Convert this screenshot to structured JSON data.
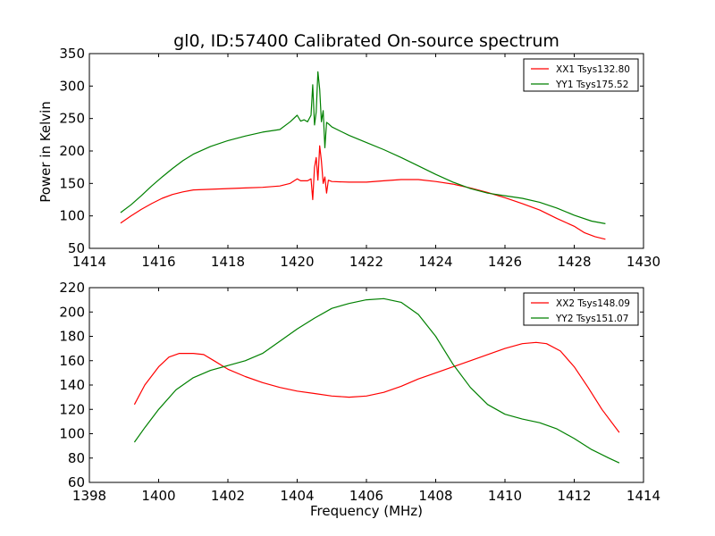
{
  "figure_title": "gl0, ID:57400 Calibrated On-source spectrum",
  "colors": {
    "xx": "#ff0000",
    "yy": "#008000",
    "axes": "#000000",
    "background": "#ffffff"
  },
  "chart_data": [
    {
      "type": "line",
      "title": "gl0, ID:57400 Calibrated On-source spectrum",
      "xlabel": "",
      "ylabel": "Power in Kelvin",
      "xlim": [
        1414,
        1430
      ],
      "ylim": [
        50,
        350
      ],
      "xticks": [
        1414,
        1416,
        1418,
        1420,
        1422,
        1424,
        1426,
        1428,
        1430
      ],
      "yticks": [
        50,
        100,
        150,
        200,
        250,
        300,
        350
      ],
      "legend_position": "top-right",
      "grid": false,
      "series": [
        {
          "name": "XX1 Tsys132.80",
          "color": "#ff0000",
          "x": [
            1414.9,
            1415.2,
            1415.5,
            1415.8,
            1416.1,
            1416.4,
            1416.7,
            1417.0,
            1417.5,
            1418.0,
            1418.5,
            1419.0,
            1419.5,
            1419.8,
            1420.0,
            1420.1,
            1420.3,
            1420.4,
            1420.45,
            1420.5,
            1420.55,
            1420.6,
            1420.65,
            1420.7,
            1420.75,
            1420.8,
            1420.85,
            1420.9,
            1421.0,
            1421.5,
            1422.0,
            1422.5,
            1423.0,
            1423.5,
            1424.0,
            1424.5,
            1425.0,
            1425.5,
            1426.0,
            1426.5,
            1427.0,
            1427.5,
            1428.0,
            1428.3,
            1428.6,
            1428.9
          ],
          "y": [
            89,
            100,
            110,
            119,
            127,
            133,
            137,
            140,
            141,
            142,
            143,
            144,
            146,
            150,
            157,
            154,
            154,
            157,
            125,
            175,
            190,
            155,
            208,
            185,
            150,
            160,
            135,
            155,
            153,
            152,
            152,
            154,
            156,
            156,
            153,
            149,
            143,
            136,
            128,
            119,
            109,
            96,
            84,
            74,
            68,
            64
          ]
        },
        {
          "name": "YY1 Tsys175.52",
          "color": "#008000",
          "x": [
            1414.9,
            1415.2,
            1415.5,
            1415.8,
            1416.1,
            1416.4,
            1416.7,
            1417.0,
            1417.5,
            1418.0,
            1418.5,
            1419.0,
            1419.5,
            1419.8,
            1420.0,
            1420.1,
            1420.2,
            1420.3,
            1420.4,
            1420.45,
            1420.5,
            1420.55,
            1420.6,
            1420.65,
            1420.7,
            1420.75,
            1420.8,
            1420.85,
            1420.9,
            1421.0,
            1421.5,
            1422.0,
            1422.5,
            1423.0,
            1423.5,
            1424.0,
            1424.5,
            1425.0,
            1425.5,
            1426.0,
            1426.5,
            1427.0,
            1427.5,
            1428.0,
            1428.5,
            1428.9
          ],
          "y": [
            105,
            117,
            131,
            146,
            160,
            173,
            185,
            195,
            207,
            216,
            223,
            229,
            233,
            245,
            255,
            246,
            248,
            245,
            255,
            302,
            240,
            260,
            322,
            295,
            245,
            262,
            205,
            244,
            242,
            237,
            224,
            213,
            202,
            190,
            177,
            164,
            152,
            142,
            135,
            131,
            127,
            121,
            112,
            101,
            92,
            88
          ]
        }
      ]
    },
    {
      "type": "line",
      "title": "",
      "xlabel": "Frequency (MHz)",
      "ylabel": "",
      "xlim": [
        1398,
        1414
      ],
      "ylim": [
        60,
        220
      ],
      "xticks": [
        1398,
        1400,
        1402,
        1404,
        1406,
        1408,
        1410,
        1412,
        1414
      ],
      "yticks": [
        60,
        80,
        100,
        120,
        140,
        160,
        180,
        200,
        220
      ],
      "legend_position": "top-right",
      "grid": false,
      "series": [
        {
          "name": "XX2 Tsys148.09",
          "color": "#ff0000",
          "x": [
            1399.3,
            1399.6,
            1400.0,
            1400.3,
            1400.6,
            1401.0,
            1401.3,
            1401.6,
            1402.0,
            1402.5,
            1403.0,
            1403.5,
            1404.0,
            1404.5,
            1405.0,
            1405.5,
            1406.0,
            1406.5,
            1407.0,
            1407.5,
            1408.0,
            1408.5,
            1409.0,
            1409.5,
            1410.0,
            1410.5,
            1410.9,
            1411.2,
            1411.6,
            1412.0,
            1412.4,
            1412.8,
            1413.3
          ],
          "y": [
            124,
            140,
            155,
            163,
            166,
            166,
            165,
            160,
            153,
            147,
            142,
            138,
            135,
            133,
            131,
            130,
            131,
            134,
            139,
            145,
            150,
            155,
            160,
            165,
            170,
            174,
            175,
            174,
            168,
            155,
            138,
            120,
            101
          ]
        },
        {
          "name": "YY2 Tsys151.07",
          "color": "#008000",
          "x": [
            1399.3,
            1399.6,
            1400.0,
            1400.5,
            1401.0,
            1401.5,
            1402.0,
            1402.5,
            1403.0,
            1403.5,
            1404.0,
            1404.5,
            1405.0,
            1405.5,
            1406.0,
            1406.5,
            1407.0,
            1407.5,
            1408.0,
            1408.5,
            1409.0,
            1409.5,
            1410.0,
            1410.5,
            1411.0,
            1411.5,
            1412.0,
            1412.5,
            1413.0,
            1413.3
          ],
          "y": [
            93,
            105,
            120,
            136,
            146,
            152,
            156,
            160,
            166,
            176,
            186,
            195,
            203,
            207,
            210,
            211,
            208,
            198,
            180,
            157,
            138,
            124,
            116,
            112,
            109,
            104,
            96,
            87,
            80,
            76
          ]
        }
      ]
    }
  ]
}
